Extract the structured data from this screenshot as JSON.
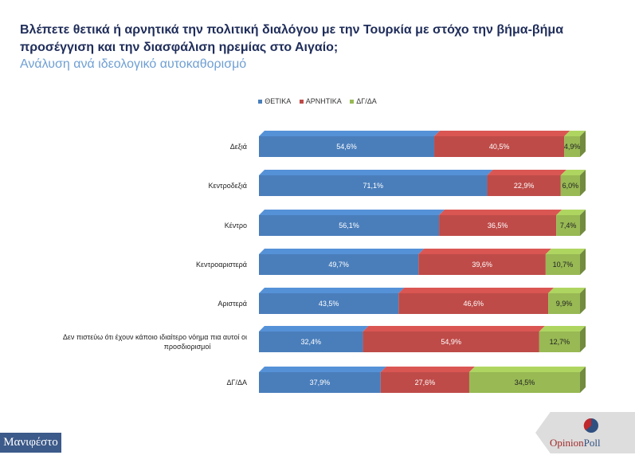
{
  "chart_data": {
    "type": "bar",
    "stacked": true,
    "orientation": "horizontal",
    "title": "Βλέπετε θετικά ή αρνητικά την πολιτική διαλόγου με την Τουρκία με στόχο την βήμα-βήμα προσέγγιση και την διασφάλιση ηρεμίας στο Αιγαίο;",
    "subtitle": "Ανάλυση ανά ιδεολογικό αυτοκαθορισμό",
    "categories": [
      "Δεξιά",
      "Κεντροδεξιά",
      "Κέντρο",
      "Κεντροαριστερά",
      "Αριστερά",
      "Δεν πιστεύω ότι έχουν κάποιο ιδιαίτερο νόημα πια αυτοί οι προσδιορισμοί",
      "ΔΓ/ΔΑ"
    ],
    "series": [
      {
        "name": "ΘΕΤΙΚΑ",
        "color": "#4a7ebb",
        "values": [
          54.6,
          71.1,
          56.1,
          49.7,
          43.5,
          32.4,
          37.9
        ]
      },
      {
        "name": "ΑΡΝΗΤΙΚΑ",
        "color": "#be4b48",
        "values": [
          40.5,
          22.9,
          36.5,
          39.6,
          46.6,
          54.9,
          27.6
        ]
      },
      {
        "name": "ΔΓ/ΔΑ",
        "color": "#98b954",
        "values": [
          4.9,
          6.0,
          7.4,
          10.7,
          9.9,
          12.7,
          34.5
        ]
      }
    ],
    "legend": "top",
    "xlim": [
      0,
      100
    ],
    "grid": false
  },
  "logos": {
    "left": "Πρώτο Θέμα Μανιφέστο",
    "left_text": "Μανιφέστο",
    "right": "OpinionPoll"
  }
}
